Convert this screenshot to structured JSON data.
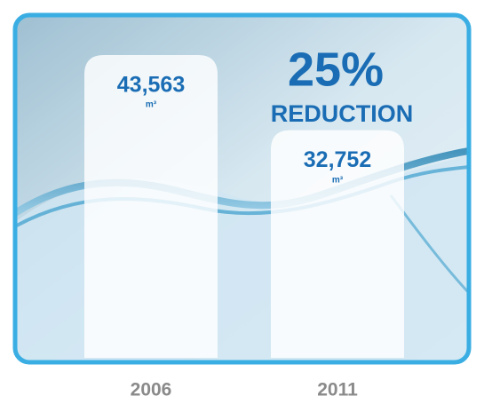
{
  "chart_data": {
    "type": "bar",
    "categories": [
      "2006",
      "2011"
    ],
    "values": [
      43563,
      32752
    ],
    "value_labels": [
      "43,563",
      "32,752"
    ],
    "unit": "m³",
    "annotations": [
      "25%",
      "REDUCTION"
    ],
    "color": "#ffffff",
    "label_color": "#1a6db4"
  }
}
